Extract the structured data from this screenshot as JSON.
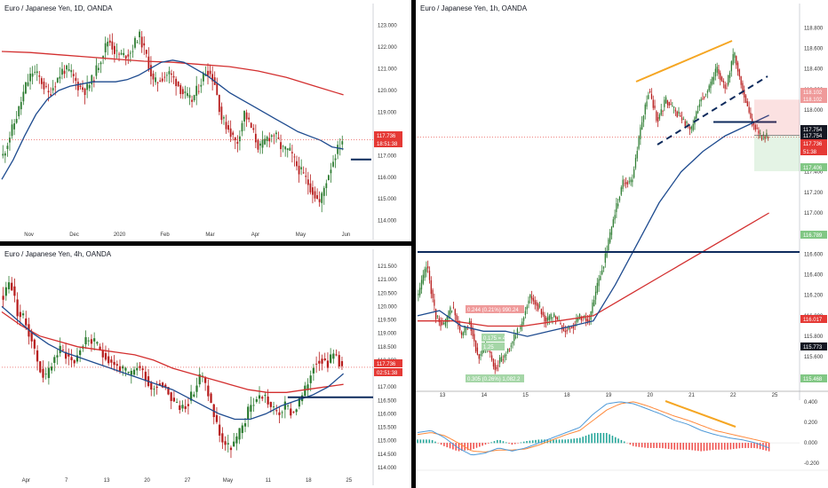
{
  "panels": [
    {
      "title": "Euro / Japanese Yen, 1D, OANDA",
      "y_ticks": [
        "123.000",
        "122.000",
        "121.000",
        "120.000",
        "119.000",
        "118.000",
        "117.000",
        "116.000",
        "115.000",
        "114.000"
      ],
      "x_ticks": [
        "Nov",
        "Dec",
        "2020",
        "Feb",
        "Mar",
        "Apr",
        "May",
        "Jun"
      ],
      "price_tags": [
        {
          "text": "117.736",
          "color": "#e53935"
        },
        {
          "text": "18:51:38",
          "color": "#e53935"
        }
      ]
    },
    {
      "title": "Euro / Japanese Yen, 4h, OANDA",
      "y_ticks": [
        "121.500",
        "121.000",
        "120.500",
        "120.000",
        "119.500",
        "119.000",
        "118.500",
        "118.000",
        "117.500",
        "117.000",
        "116.500",
        "116.000",
        "115.500",
        "115.000",
        "114.500",
        "114.000"
      ],
      "x_ticks": [
        "Apr",
        "7",
        "13",
        "20",
        "27",
        "May",
        "11",
        "18",
        "25"
      ],
      "price_tags": [
        {
          "text": "117.736",
          "color": "#e53935"
        },
        {
          "text": "02:51:38",
          "color": "#e53935"
        }
      ]
    },
    {
      "title": "Euro / Japanese Yen, 1h, OANDA",
      "y_ticks": [
        "118.800",
        "118.600",
        "118.400",
        "118.200",
        "118.000",
        "117.800",
        "117.600",
        "117.400",
        "117.200",
        "117.000",
        "116.800",
        "116.600",
        "116.400",
        "116.200",
        "116.000",
        "115.800",
        "115.600",
        "115.400"
      ],
      "x_ticks": [
        "13",
        "14",
        "15",
        "18",
        "19",
        "20",
        "21",
        "22",
        "25"
      ],
      "price_tags": [
        {
          "text": "118.102",
          "color": "#ef9a9a"
        },
        {
          "text": "118.102",
          "color": "#ef9a9a"
        },
        {
          "text": "117.754",
          "color": "#131722"
        },
        {
          "text": "117.754",
          "color": "#131722"
        },
        {
          "text": "117.736",
          "color": "#e53935"
        },
        {
          "text": "51:38",
          "color": "#e53935"
        },
        {
          "text": "117.406",
          "color": "#81c784"
        },
        {
          "text": "116.789",
          "color": "#81c784"
        },
        {
          "text": "116.017",
          "color": "#e53935"
        },
        {
          "text": "115.773",
          "color": "#131722"
        },
        {
          "text": "115.468",
          "color": "#81c784"
        }
      ],
      "osc_ticks": [
        "0.400",
        "0.200",
        "0.000",
        "-0.200"
      ],
      "annotations": [
        "0.244 (0.21%) 990.24",
        "0.175 = 40",
        "1.25",
        "0.305 (0.26%) 1,082.2"
      ]
    }
  ],
  "chart_data": [
    {
      "type": "candlestick",
      "timeframe": "1D",
      "title": "Euro / Japanese Yen, 1D, OANDA",
      "ylim": [
        113.7,
        123.6
      ],
      "x_range": [
        "Oct 2019",
        "Jun 2020"
      ],
      "close_path": [
        117.0,
        118.0,
        119.0,
        120.2,
        120.9,
        120.5,
        119.8,
        120.4,
        121.0,
        120.8,
        120.2,
        120.0,
        120.6,
        121.5,
        122.4,
        121.7,
        121.6,
        121.8,
        122.6,
        121.6,
        120.3,
        120.6,
        120.8,
        120.4,
        119.8,
        119.5,
        120.2,
        121.0,
        120.5,
        118.7,
        118.2,
        117.5,
        119.0,
        118.2,
        117.3,
        117.8,
        118.0,
        117.3,
        117.2,
        116.5,
        116.0,
        115.4,
        114.8,
        116.0,
        117.0,
        117.736
      ],
      "ma_blue": [
        115.9,
        116.8,
        117.9,
        118.9,
        119.6,
        120.0,
        120.2,
        120.3,
        120.4,
        120.4,
        120.4,
        120.5,
        120.7,
        121.0,
        121.3,
        121.4,
        121.3,
        121.0,
        120.7,
        120.3,
        119.9,
        119.6,
        119.3,
        119.0,
        118.7,
        118.4,
        118.1,
        117.9,
        117.7,
        117.4,
        117.3
      ],
      "ma_red": [
        121.8,
        121.75,
        121.65,
        121.55,
        121.45,
        121.35,
        121.3,
        121.2,
        121.1,
        120.9,
        120.6,
        120.2,
        119.8
      ],
      "horizontal_line": 116.82,
      "last": 117.736
    },
    {
      "type": "candlestick",
      "timeframe": "4h",
      "title": "Euro / Japanese Yen, 4h, OANDA",
      "ylim": [
        113.8,
        121.8
      ],
      "x_range": [
        "Mar 31 2020",
        "May 27 2020"
      ],
      "close_path": [
        120.4,
        121.0,
        119.8,
        119.5,
        118.8,
        117.8,
        117.3,
        118.0,
        118.4,
        118.2,
        117.9,
        118.5,
        118.8,
        118.6,
        118.3,
        118.0,
        117.8,
        117.6,
        117.4,
        117.8,
        117.5,
        116.9,
        117.2,
        117.0,
        116.5,
        116.2,
        116.4,
        116.8,
        117.5,
        116.8,
        115.8,
        115.0,
        114.7,
        115.0,
        115.6,
        116.3,
        116.6,
        116.7,
        116.2,
        116.0,
        116.3,
        116.0,
        116.5,
        117.0,
        117.9,
        118.1,
        117.9,
        118.3,
        117.736
      ],
      "ma_blue": [
        120.0,
        119.5,
        119.0,
        118.6,
        118.3,
        118.1,
        117.9,
        117.7,
        117.5,
        117.3,
        117.1,
        116.9,
        116.6,
        116.3,
        116.0,
        115.8,
        115.8,
        116.0,
        116.3,
        116.5,
        116.7,
        117.0,
        117.5
      ],
      "ma_red": [
        119.8,
        119.3,
        118.9,
        118.7,
        118.5,
        118.4,
        118.3,
        118.2,
        118.0,
        117.7,
        117.5,
        117.3,
        117.1,
        116.9,
        116.8,
        116.8,
        116.9,
        117.0,
        117.1
      ],
      "horizontal_line": 116.62,
      "last": 117.736
    },
    {
      "type": "candlestick",
      "timeframe": "1h",
      "title": "Euro / Japanese Yen, 1h, OANDA",
      "ylim": [
        115.3,
        118.95
      ],
      "x_range": [
        "May 12 2020",
        "May 25 2020"
      ],
      "close_path": [
        116.2,
        116.5,
        116.0,
        115.9,
        116.1,
        115.8,
        115.95,
        115.6,
        115.7,
        115.5,
        115.6,
        115.75,
        115.9,
        116.2,
        116.1,
        115.95,
        116.0,
        115.85,
        115.9,
        116.0,
        115.95,
        116.3,
        116.6,
        117.0,
        117.3,
        117.3,
        117.8,
        118.2,
        117.9,
        118.1,
        118.0,
        117.9,
        117.8,
        118.1,
        118.2,
        118.4,
        118.2,
        118.55,
        118.2,
        117.9,
        117.754,
        117.736
      ],
      "ma_blue": [
        116.0,
        116.05,
        115.9,
        115.85,
        115.85,
        115.8,
        115.85,
        115.9,
        115.95,
        116.3,
        116.7,
        117.1,
        117.4,
        117.6,
        117.75,
        117.85,
        117.95
      ],
      "ma_red": [
        115.95,
        115.95,
        115.9,
        115.9,
        115.95,
        116.0,
        116.2,
        116.4,
        116.6,
        116.8,
        117.0
      ],
      "horizontal_line": 116.62,
      "resistance_line": 117.88,
      "long_position": {
        "entry": 117.754,
        "stop": 118.102,
        "target": 117.406
      },
      "oscillator": {
        "ylim": [
          -0.25,
          0.45
        ],
        "macd": [
          0.1,
          0.12,
          0.05,
          -0.05,
          -0.12,
          -0.1,
          -0.05,
          -0.08,
          -0.05,
          0.0,
          0.05,
          0.1,
          0.15,
          0.28,
          0.38,
          0.4,
          0.38,
          0.33,
          0.28,
          0.22,
          0.18,
          0.12,
          0.08,
          0.05,
          0.03,
          0.0,
          -0.05
        ],
        "signal": [
          0.08,
          0.1,
          0.07,
          0.0,
          -0.08,
          -0.09,
          -0.07,
          -0.07,
          -0.06,
          -0.02,
          0.03,
          0.08,
          0.12,
          0.22,
          0.32,
          0.38,
          0.4,
          0.36,
          0.31,
          0.26,
          0.22,
          0.17,
          0.12,
          0.09,
          0.06,
          0.03,
          0.0
        ]
      },
      "last": 117.736
    }
  ],
  "colors": {
    "up": "#26a69a",
    "down": "#e53935",
    "candle_up": "#2e7d32",
    "candle_down": "#b71c1c",
    "ma_blue": "#1e4b8f",
    "ma_red": "#d32f2f",
    "hline": "#0d2a5c",
    "trend": "#f5a623"
  }
}
